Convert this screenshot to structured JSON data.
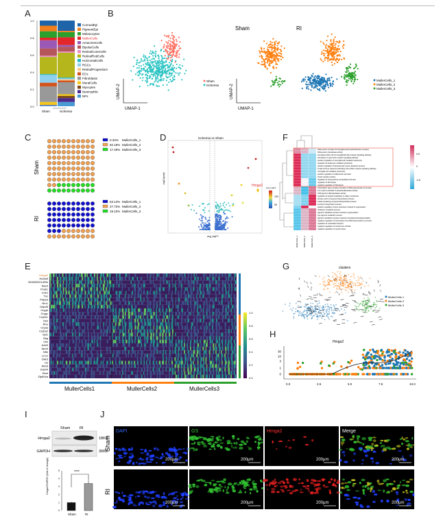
{
  "panels": {
    "a": "A",
    "b": "B",
    "c": "C",
    "d": "D",
    "e": "E",
    "f": "F",
    "g": "G",
    "h": "H",
    "i": "I",
    "j": "J"
  },
  "panel_a": {
    "yticks": [
      "0.0",
      "0.2",
      "0.4",
      "0.6",
      "0.8",
      "1.0"
    ],
    "groups": [
      "Sham",
      "Ischemia"
    ],
    "highlight": "MullerCells",
    "cell_types": [
      {
        "name": "CornealEpi",
        "color": "#1f63a8",
        "sham": 0.06,
        "ischemia": 0.12
      },
      {
        "name": "PigmentEpi",
        "color": "#f07f1c",
        "sham": 0.065,
        "ischemia": 0.015
      },
      {
        "name": "Melanocytes",
        "color": "#2ca02c",
        "sham": 0.075,
        "ischemia": 0.06
      },
      {
        "name": "MullerCells",
        "color": "#e3262a",
        "sham": 0.03,
        "ischemia": 0.09
      },
      {
        "name": "AmacrineCells",
        "color": "#9b59b6",
        "sham": 0.095,
        "ischemia": 0.02
      },
      {
        "name": "BipolarCells",
        "color": "#b5565a",
        "sham": 0.085,
        "ischemia": 0.055
      },
      {
        "name": "RetinalConeCells",
        "color": "#e88fc0",
        "sham": 0.015,
        "ischemia": 0.015
      },
      {
        "name": "RetinalRodCells",
        "color": "#b5b51c",
        "sham": 0.2,
        "ischemia": 0.29
      },
      {
        "name": "HorizontalCells",
        "color": "#1fb8c8",
        "sham": 0.01,
        "ischemia": 0.01
      },
      {
        "name": "RGCs",
        "color": "#8fd0ee",
        "sham": 0.09,
        "ischemia": 0.01
      },
      {
        "name": "RetinalProgenitors",
        "color": "#f7c98a",
        "sham": 0.0,
        "ischemia": 0.015
      },
      {
        "name": "ECs",
        "color": "#d2541e",
        "sham": 0.045,
        "ischemia": 0.02
      },
      {
        "name": "Fibroblasts",
        "color": "#999999",
        "sham": 0.18,
        "ischemia": 0.14
      },
      {
        "name": "MuralCells",
        "color": "#f2c81c",
        "sham": 0.035,
        "ischemia": 0.02
      },
      {
        "name": "Myocytes",
        "color": "#7a4a1e",
        "sham": 0.0,
        "ischemia": 0.025
      },
      {
        "name": "Neutrophils",
        "color": "#4b2a8c",
        "sham": 0.005,
        "ischemia": 0.045
      },
      {
        "name": "NPs",
        "color": "#4a9ad4",
        "sham": 0.01,
        "ischemia": 0.05
      }
    ]
  },
  "panel_b": {
    "legend": [
      "Sham",
      "Ischemia"
    ],
    "xlabel": "UMAP-1",
    "ylabel": "UMAP-2",
    "titles": [
      "Sham",
      "RI"
    ],
    "cluster_legend": [
      "MullerCells_1",
      "MullerCells_2",
      "MullerCells_3"
    ]
  },
  "colors": {
    "mc1": "#1f77b4",
    "mc2": "#ff7f0e",
    "mc3": "#2ca02c",
    "sham": "#ff6f61",
    "ischemia": "#2ec4c4"
  },
  "panel_c": {
    "rows": [
      {
        "label": "Sham",
        "legend": [
          {
            "pct": "0.33%",
            "name": "MullerCells_1",
            "value": 0.33
          },
          {
            "pct": "82.18%",
            "name": "MullerCells_2",
            "value": 82.18
          },
          {
            "pct": "17.49%",
            "name": "MullerCells_3",
            "value": 17.49
          }
        ]
      },
      {
        "label": "RI",
        "legend": [
          {
            "pct": "53.13%",
            "name": "MullerCells_1",
            "value": 53.13
          },
          {
            "pct": "27.73%",
            "name": "MullerCells_2",
            "value": 27.73
          },
          {
            "pct": "19.10%",
            "name": "MullerCells_3",
            "value": 19.1
          }
        ]
      }
    ],
    "colors": [
      "#1010d0",
      "#f0a050",
      "#22dd22"
    ]
  },
  "panel_d": {
    "title": "Ischemia vs Sham",
    "highlight_gene": "Hmga2",
    "xlabel": "avg_logFC",
    "ylabel": "-log10(pval)",
    "colorbar_ticks": [
      "100",
      "50"
    ]
  },
  "panel_e": {
    "genes": [
      "Hmga2",
      "Hs3st5",
      "9530059O14Rik",
      "Nav3",
      "Pcsk1",
      "Cdsn",
      "Tnc",
      "Pappa",
      "Nrn1",
      "Gdpd5",
      "Crygb",
      "Crygc",
      "Crybb1",
      "Glul",
      "Rho",
      "Cryaa",
      "Cryba2",
      "Syt1",
      "Sag",
      "Vim",
      "Add3",
      "Apod",
      "Nfib",
      "Lrrc2",
      "Dkk3",
      "Cp",
      "Abhd",
      "Elavl4",
      "Rest",
      "Zfp804a"
    ],
    "highlight_gene": "Hmga2",
    "groups": [
      "MullerCells1",
      "MullerCells2",
      "MullerCells3"
    ],
    "colorbar_ticks": [
      "1.0",
      "0.8",
      "0.6",
      "0.4",
      "0.2",
      "0.0"
    ]
  },
  "panel_f": {
    "terms": [
      "DNA-protein complex (N-acetylglucosaminyltransferase complex)",
      "DNA-protein transferase activity",
      "stimulatory killer cell immunoglobulin-like receptor signaling pathway",
      "stimulatory C-type lectin receptor signaling pathway",
      "positive regulation of microglial cell mediated cytotoxicity",
      "regulation of leukocyte mediated cytotoxicity",
      "positive regulation of hippocampal neuron apoptotic process",
      "innate immune response activating cell surface receptor signaling pathway",
      "microglial cell mediated cytotoxicity",
      "positive regulation of adiponectin secretion",
      "insulin receptor activity",
      "regulation of cell growth by extracellular stimulus",
      "regulation of fibrinolysis",
      "negative regulation of fibrinolysis",
      "transcription open complex formation at RNA polymerase II promoter",
      "2',3'-cyclic-nucleotide 3'-phosphodiesterase activity",
      "CDP-glycerol diphosphatase activity",
      "regulation of protein localization to ciliary membrane",
      "primary amino compound biosynthetic process",
      "indole-containing compound biosynthetic process",
      "serotonin biosynthetic process",
      "positive regulation of axon extension involved in regeneration",
      "rhodopsin metabolic process",
      "pigment metabolic process involved in pigmentation",
      "eye pigment metabolic process",
      "pigment metabolic process involved in developmental pigmentation",
      "negative regulation of transcription from RNA polymerase II promoter",
      "regulation of nucleotide transport",
      "negative regulation of retinal cone cell fate",
      "negative regulation of muscle tissue"
    ],
    "columns": [
      "MullerCells_1",
      "MullerCells_2",
      "MullerCells_3"
    ],
    "colorbar_ticks": [
      "0.5",
      "0",
      "-0.5"
    ]
  },
  "panel_g": {
    "title": "clusters",
    "legend": [
      "MullerCells 1",
      "MullerCells 2",
      "MullerCells 3"
    ]
  },
  "panel_h": {
    "title": "Hmga2",
    "xticks": [
      "0.0",
      "2.5",
      "5.0",
      "7.5",
      "10.0"
    ],
    "yticks": [
      "30",
      "10",
      "3",
      "1",
      "0"
    ]
  },
  "panel_i": {
    "lanes": [
      "Sham",
      "RI"
    ],
    "bands": [
      {
        "name": "Hmga2",
        "size": "18KD"
      },
      {
        "name": "GAPDH",
        "size": "36KD"
      }
    ],
    "ylabel": "Hmga2/GAPDH (fold of change)",
    "yticks": [
      "0",
      "1",
      "2",
      "3",
      "4",
      "5"
    ],
    "bars": [
      {
        "label": "Sham",
        "value": 1.0,
        "error": 0.1
      },
      {
        "label": "RI",
        "value": 3.4,
        "error": 0.45
      }
    ],
    "significance": "****"
  },
  "panel_j": {
    "channels": [
      {
        "name": "DAPI",
        "color": "#3b6cff"
      },
      {
        "name": "GS",
        "color": "#3fcf3f"
      },
      {
        "name": "Hmga2",
        "color": "#ff3030"
      },
      {
        "name": "Merge",
        "color": "#ffffff"
      }
    ],
    "rows": [
      "Sham",
      "RI"
    ],
    "scale_bar": "200μm"
  }
}
